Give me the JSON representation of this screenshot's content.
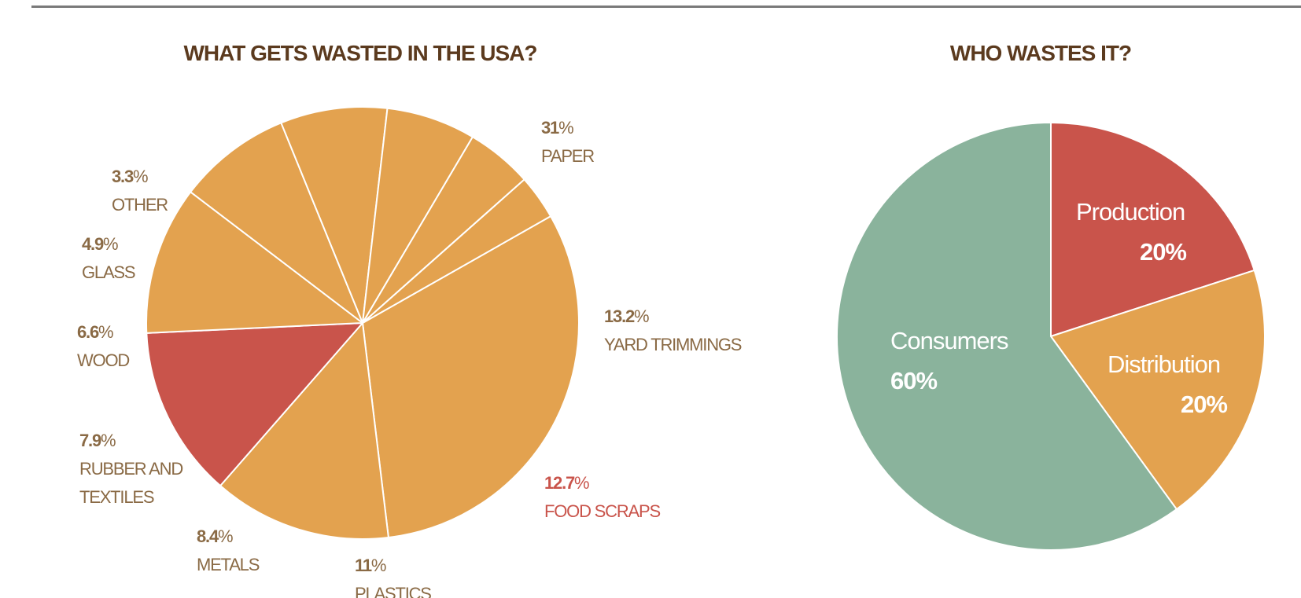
{
  "chart_data": [
    {
      "type": "pie",
      "title": "WHAT GETS WASTED IN THE USA?",
      "slices": [
        {
          "label": "PAPER",
          "value": 31,
          "display": "31",
          "label_lines": [
            "PAPER"
          ],
          "color": "#e3a24f",
          "text_color": "#8a6a45"
        },
        {
          "label": "YARD TRIMMINGS",
          "value": 13.2,
          "display": "13.2",
          "label_lines": [
            "YARD TRIMMINGS"
          ],
          "color": "#e3a24f",
          "text_color": "#8a6a45"
        },
        {
          "label": "FOOD SCRAPS",
          "value": 12.7,
          "display": "12.7",
          "label_lines": [
            "FOOD SCRAPS"
          ],
          "color": "#c9544b",
          "text_color": "#c9544b"
        },
        {
          "label": "PLASTICS",
          "value": 11,
          "display": "11",
          "label_lines": [
            "PLASTICS"
          ],
          "color": "#e3a24f",
          "text_color": "#8a6a45"
        },
        {
          "label": "METALS",
          "value": 8.4,
          "display": "8.4",
          "label_lines": [
            "METALS"
          ],
          "color": "#e3a24f",
          "text_color": "#8a6a45"
        },
        {
          "label": "RUBBER AND TEXTILES",
          "value": 7.9,
          "display": "7.9",
          "label_lines": [
            "RUBBER AND",
            "TEXTILES"
          ],
          "color": "#e3a24f",
          "text_color": "#8a6a45"
        },
        {
          "label": "WOOD",
          "value": 6.6,
          "display": "6.6",
          "label_lines": [
            "WOOD"
          ],
          "color": "#e3a24f",
          "text_color": "#8a6a45"
        },
        {
          "label": "GLASS",
          "value": 4.9,
          "display": "4.9",
          "label_lines": [
            "GLASS"
          ],
          "color": "#e3a24f",
          "text_color": "#8a6a45"
        },
        {
          "label": "OTHER",
          "value": 3.3,
          "display": "3.3",
          "label_lines": [
            "OTHER"
          ],
          "color": "#e3a24f",
          "text_color": "#8a6a45"
        }
      ],
      "percent_sign": "%",
      "legend": "none"
    },
    {
      "type": "pie",
      "title": "WHO WASTES IT?",
      "slices": [
        {
          "label": "Production",
          "value": 20,
          "display": "20%",
          "color": "#c9544b"
        },
        {
          "label": "Distribution",
          "value": 20,
          "display": "20%",
          "color": "#e3a24f"
        },
        {
          "label": "Consumers",
          "value": 60,
          "display": "60%",
          "color": "#8ab39c"
        }
      ],
      "legend": "none"
    }
  ]
}
